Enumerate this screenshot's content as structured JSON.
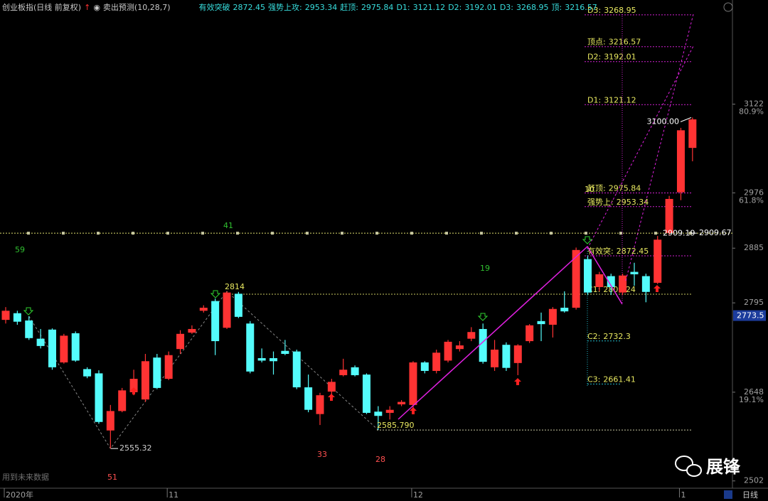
{
  "chart_data": {
    "type": "candlestick",
    "title": "创业板指(日线 前复权)",
    "indicator": "卖出预测(10,28,7)",
    "header_items": [
      {
        "name": "有效突破",
        "value": 2872.45
      },
      {
        "name": "强势上攻:",
        "value": 2953.34
      },
      {
        "name": "赶顶:",
        "value": 2975.84
      },
      {
        "name": "D1:",
        "value": 3121.12
      },
      {
        "name": "D2:",
        "value": 3192.01
      },
      {
        "name": "D3:",
        "value": 3268.95
      },
      {
        "name": "顶:",
        "value": 3216.57
      }
    ],
    "categories": [
      "2020年",
      null,
      null,
      null,
      null,
      null,
      null,
      null,
      null,
      null,
      null,
      null,
      null,
      null,
      "11",
      null,
      null,
      null,
      null,
      null,
      null,
      null,
      null,
      null,
      null,
      null,
      null,
      null,
      null,
      null,
      null,
      null,
      null,
      null,
      null,
      "12",
      null,
      null,
      null,
      null,
      null,
      null,
      null,
      null,
      null,
      null,
      null,
      null,
      null,
      null,
      null,
      null,
      null,
      null,
      null,
      null,
      null,
      null,
      "1",
      null
    ],
    "open": [
      2767,
      2778,
      2766,
      2736,
      2751,
      2697,
      2745,
      2686,
      2679,
      2585,
      2617,
      2648,
      2636,
      2705,
      2670,
      2719,
      2746,
      2782,
      2798,
      2754,
      2810,
      2761,
      2704,
      2704,
      2716,
      2715,
      2656,
      2612,
      2649,
      2676,
      2689,
      2677,
      2616,
      2614,
      2628,
      2627,
      2697,
      2683,
      2700,
      2719,
      2736,
      2752,
      2689,
      2726,
      2696,
      2732,
      2765,
      2759,
      2787,
      2787,
      2867,
      2821,
      2839,
      2812,
      2846,
      2839,
      2828,
      2910,
      2977,
      3050
    ],
    "high": [
      2788,
      2782,
      2773,
      2752,
      2753,
      2744,
      2748,
      2689,
      2684,
      2627,
      2655,
      2685,
      2711,
      2711,
      2715,
      2750,
      2758,
      2791,
      2802,
      2814,
      2813,
      2765,
      2720,
      2715,
      2734,
      2718,
      2677,
      2647,
      2670,
      2703,
      2692,
      2679,
      2625,
      2625,
      2635,
      2699,
      2699,
      2718,
      2734,
      2732,
      2755,
      2761,
      2734,
      2730,
      2727,
      2760,
      2779,
      2788,
      2814,
      2886,
      2872,
      2846,
      2843,
      2843,
      2861,
      2843,
      2905,
      2971,
      3083,
      3100
    ],
    "low": [
      2761,
      2759,
      2734,
      2720,
      2685,
      2695,
      2698,
      2671,
      2596,
      2555.32,
      2615,
      2643,
      2632,
      2653,
      2668,
      2711,
      2744,
      2779,
      2709,
      2752,
      2770,
      2679,
      2697,
      2677,
      2709,
      2653,
      2615,
      2594,
      2642,
      2674,
      2674,
      2612,
      2585.79,
      2603,
      2625,
      2621,
      2679,
      2679,
      2697,
      2715,
      2732,
      2695,
      2683,
      2683,
      2676,
      2729,
      2732,
      2738,
      2779,
      2784,
      2808,
      2814,
      2808,
      2808,
      2823,
      2796,
      2826,
      2907,
      2964,
      3028
    ],
    "close": [
      2782,
      2764,
      2737,
      2724,
      2689,
      2741,
      2700,
      2674,
      2599,
      2617,
      2651,
      2670,
      2699,
      2655,
      2709,
      2744,
      2752,
      2787,
      2732,
      2812,
      2772,
      2682,
      2700,
      2699,
      2711,
      2656,
      2619,
      2643,
      2665,
      2685,
      2676,
      2614,
      2609,
      2619,
      2632,
      2697,
      2683,
      2713,
      2731,
      2725,
      2747,
      2698,
      2718,
      2688,
      2725,
      2758,
      2760,
      2785,
      2781,
      2882,
      2812,
      2842,
      2821,
      2840,
      2842,
      2813,
      2899,
      2966,
      3079,
      3097
    ],
    "up_color": "#ff3333",
    "down_color": "#54fcfc",
    "ylim": [
      2490,
      3270
    ],
    "yticks": [
      2502,
      2648,
      2795,
      2885,
      2976,
      3122
    ],
    "ytick_percent": [
      {
        "value": 2648,
        "label": "19.1%"
      },
      {
        "value": 2976,
        "label": "61.8%"
      },
      {
        "value": 3122,
        "label": "80.9%"
      }
    ],
    "levels": [
      {
        "name": "D3:",
        "value": 3268.95,
        "color": "#d020d0"
      },
      {
        "name": "顶点:",
        "value": 3216.57,
        "color": "#d020d0"
      },
      {
        "name": "D2:",
        "value": 3192.01,
        "color": "#d020d0"
      },
      {
        "name": "D1:",
        "value": 3121.12,
        "color": "#d020d0"
      },
      {
        "name": "赶顶:",
        "value": 2975.84,
        "color": "#d020d0"
      },
      {
        "name": "强势上:",
        "value": 2953.34,
        "color": "#d020d0"
      },
      {
        "name": "有效突:",
        "value": 2872.45,
        "color": "#d020d0"
      },
      {
        "name": "C1:",
        "value": 2809.24,
        "color": "#c8c860"
      },
      {
        "name": "C2:",
        "value": 2732.3,
        "color": "#20b8c8"
      },
      {
        "name": "C3:",
        "value": 2661.41,
        "color": "#20b8c8"
      }
    ],
    "price_labels": [
      {
        "value": 2555.32,
        "label": "2555.32"
      },
      {
        "value": 2585.79,
        "label": "2585.790"
      },
      {
        "value": 2814,
        "label": "2814"
      },
      {
        "value": 3100,
        "label": "3100.00"
      },
      {
        "value": 2909.19,
        "label": "2909.19"
      }
    ],
    "reference_line": 2909.67,
    "cursor_price": 2773.5,
    "wave_counts": [
      "59",
      "41",
      "19",
      "51",
      "33",
      "28",
      "10"
    ],
    "note": "用到未来数据",
    "period": "日线",
    "watermark": "展锋"
  }
}
